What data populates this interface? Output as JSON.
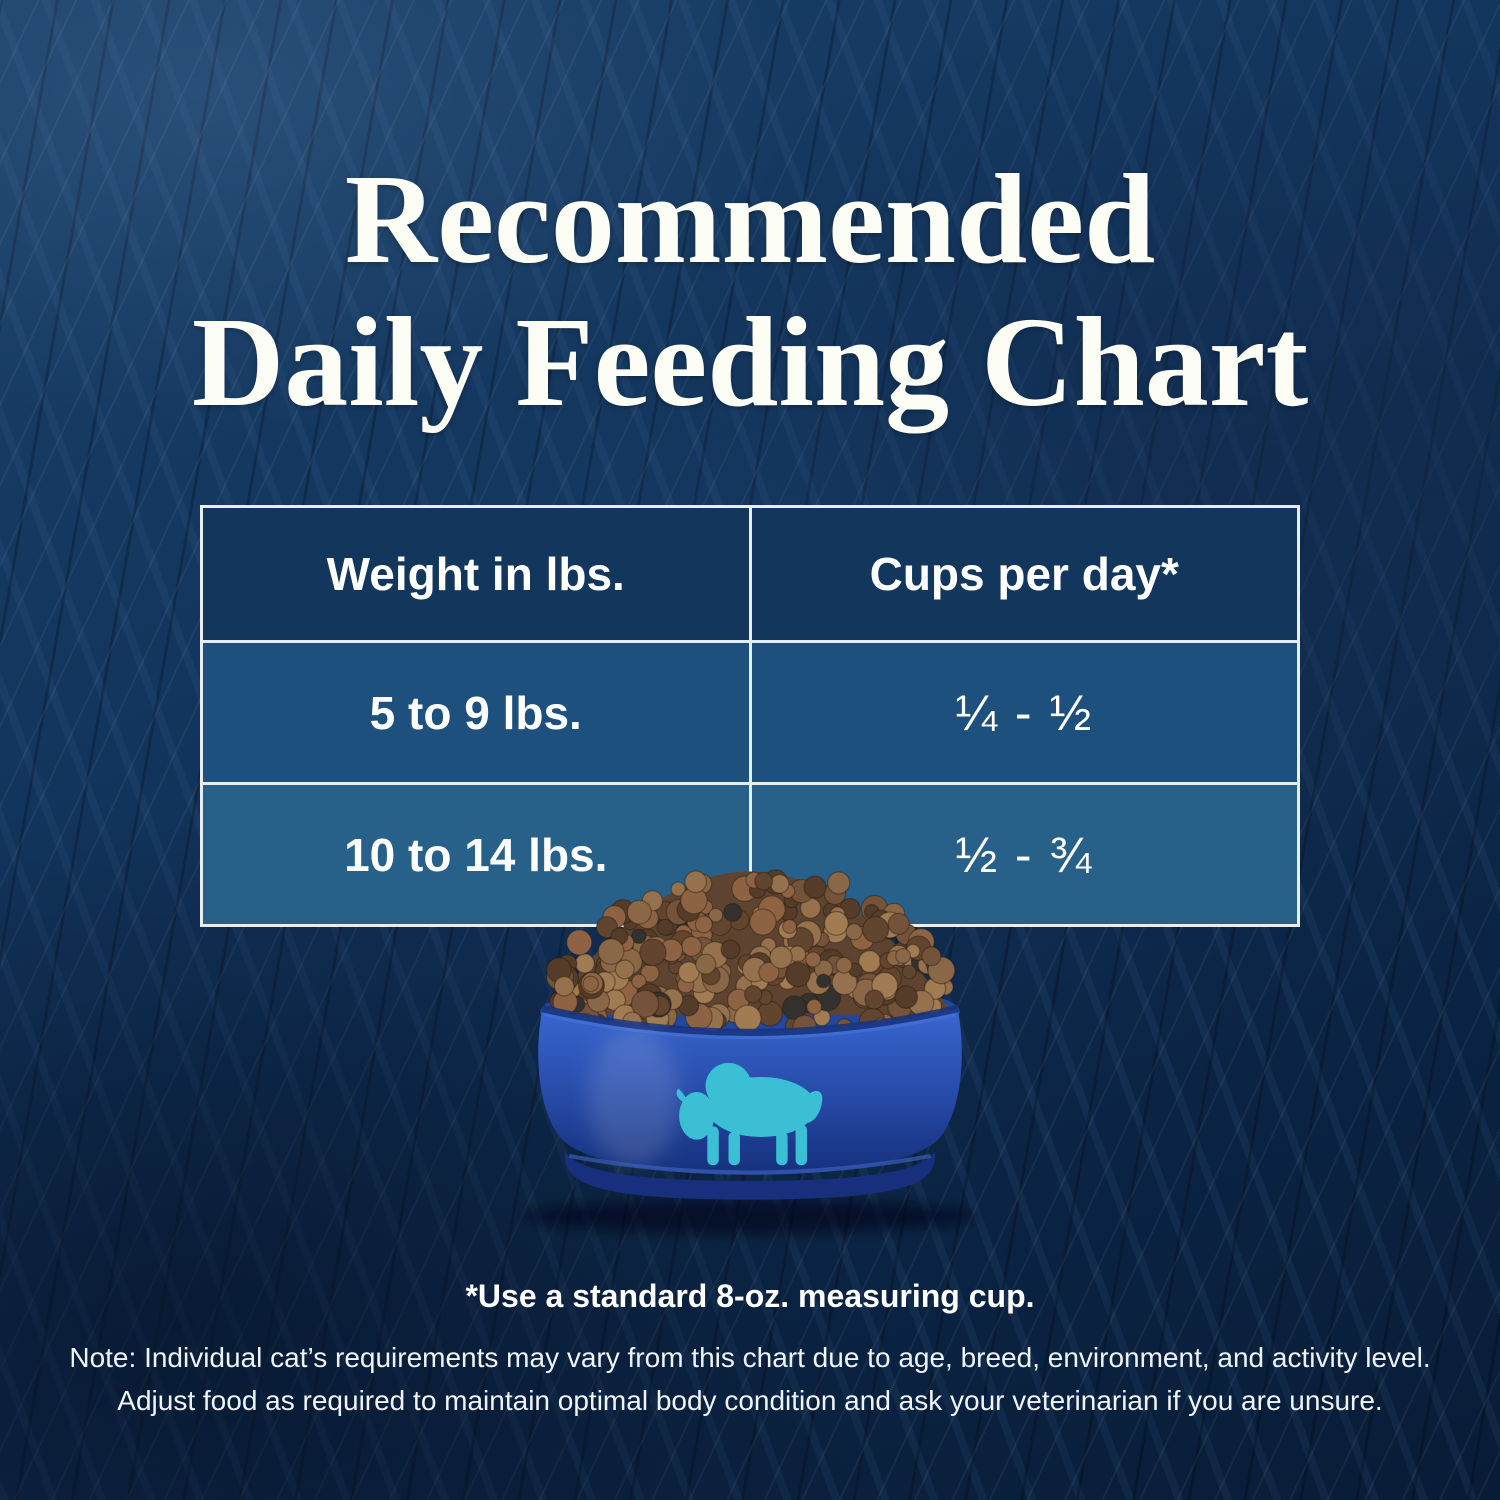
{
  "title": {
    "line1": "Recommended",
    "line2": "Daily Feeding Chart"
  },
  "table": {
    "col1_header": "Weight in lbs.",
    "col2_header": "Cups per day*",
    "rows": [
      {
        "weight": "5 to 9 lbs.",
        "cups": "¼ - ½"
      },
      {
        "weight": "10 to 14 lbs.",
        "cups": "½ - ¾"
      }
    ]
  },
  "footnote": "*Use a standard 8-oz. measuring cup.",
  "note": {
    "line1": "Note: Individual cat’s requirements may vary from this chart due to age, breed, environment, and activity level.",
    "line2": "Adjust food as required to maintain optimal body condition and ask your veterinarian if you are unsure."
  },
  "icons": {
    "bowl_logo": "buffalo-silhouette-icon"
  },
  "colors": {
    "background": "#0f2e52",
    "table_header": "#12365c",
    "table_row_1": "#1d507c",
    "table_row_2": "#27618a",
    "table_border": "#e8edf2",
    "bowl_blue": "#2b52b4",
    "buffalo_teal": "#3bbfd4",
    "text": "#ffffff"
  },
  "chart_data": {
    "type": "table",
    "title": "Recommended Daily Feeding Chart",
    "columns": [
      "Weight in lbs.",
      "Cups per day*"
    ],
    "rows": [
      [
        "5 to 9 lbs.",
        "¼ - ½"
      ],
      [
        "10 to 14 lbs.",
        "½ - ¾"
      ]
    ],
    "footnote": "*Use a standard 8-oz. measuring cup.",
    "notes": "Note: Individual cat’s requirements may vary from this chart due to age, breed, environment, and activity level. Adjust food as required to maintain optimal body condition and ask your veterinarian if you are unsure."
  }
}
